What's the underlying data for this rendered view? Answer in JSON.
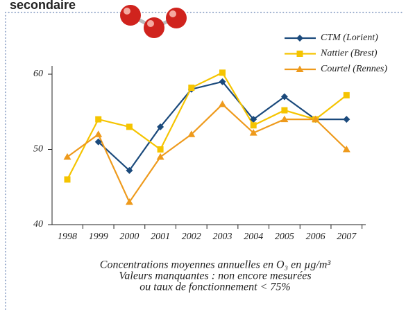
{
  "chart_data": {
    "type": "line",
    "title": "secondaire",
    "caption": [
      "Concentrations moyennes annuelles en O₃ en µg/m³",
      "Valeurs manquantes : non encore mesurées",
      "ou taux de fonctionnement < 75%"
    ],
    "categories": [
      "1998",
      "1999",
      "2000",
      "2001",
      "2002",
      "2003",
      "2004",
      "2005",
      "2006",
      "2007"
    ],
    "series": [
      {
        "name": "CTM (Lorient)",
        "color": "#1b4a7c",
        "marker": "diamond",
        "values": [
          null,
          51,
          47.2,
          53,
          58,
          59,
          54,
          57,
          54,
          54
        ]
      },
      {
        "name": "Nattier (Brest)",
        "color": "#f5c400",
        "marker": "square",
        "values": [
          46,
          54,
          53,
          50,
          58.2,
          60.2,
          53.2,
          55.2,
          54,
          57.2
        ]
      },
      {
        "name": "Courtel (Rennes)",
        "color": "#ee9a1c",
        "marker": "triangle",
        "values": [
          49,
          52,
          43,
          49,
          52,
          56,
          52.2,
          54,
          54,
          50
        ]
      }
    ],
    "ylim": [
      40,
      60
    ],
    "yticks": [
      40,
      50,
      60
    ],
    "legend": "upper right"
  }
}
